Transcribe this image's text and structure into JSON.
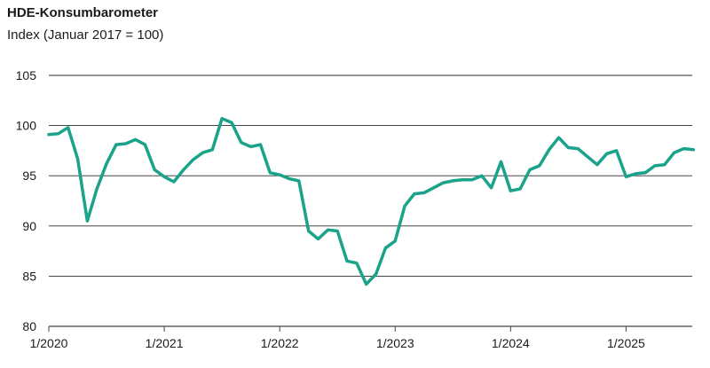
{
  "chart_data": {
    "type": "line",
    "title": "HDE-Konsumbarometer",
    "subtitle": "Index (Januar 2017 = 100)",
    "xlabel": "",
    "ylabel": "",
    "ylim": [
      80,
      105
    ],
    "yticks": [
      80,
      85,
      90,
      95,
      100,
      105
    ],
    "grid": "horizontal",
    "line_color": "#1aa38a",
    "x_tick_labels": [
      {
        "label": "1/2020",
        "month": 0
      },
      {
        "label": "1/2021",
        "month": 12
      },
      {
        "label": "1/2022",
        "month": 24
      },
      {
        "label": "1/2023",
        "month": 36
      },
      {
        "label": "1/2024",
        "month": 48
      },
      {
        "label": "1/2025",
        "month": 60
      }
    ],
    "series": [
      {
        "values": [
          99.1,
          99.2,
          99.8,
          96.7,
          90.5,
          93.7,
          96.2,
          98.1,
          98.2,
          98.6,
          98.1,
          95.6,
          94.9,
          94.4,
          95.6,
          96.6,
          97.3,
          97.6,
          100.7,
          100.3,
          98.3,
          97.9,
          98.1,
          95.3,
          95.1,
          94.7,
          94.5,
          89.5,
          88.7,
          89.6,
          89.5,
          86.5,
          86.3,
          84.2,
          85.2,
          87.8,
          88.5,
          92.0,
          93.2,
          93.3,
          93.8,
          94.3,
          94.5,
          94.6,
          94.6,
          95.0,
          93.8,
          96.4,
          93.5,
          93.7,
          95.6,
          96.0,
          97.6,
          98.8,
          97.8,
          97.7,
          96.9,
          96.1,
          97.2,
          97.5,
          94.9,
          95.2,
          95.3,
          96.0,
          96.1,
          97.3,
          97.7,
          97.6
        ]
      }
    ]
  }
}
